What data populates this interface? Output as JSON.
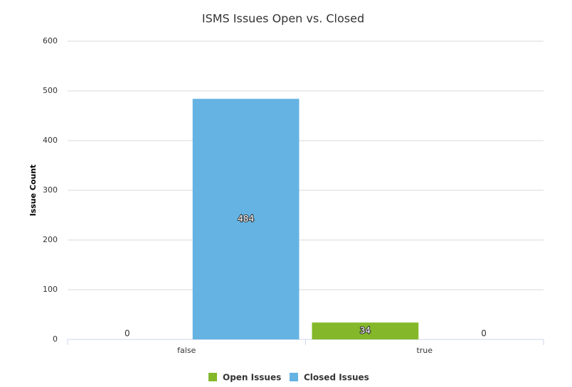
{
  "chart_data": {
    "type": "bar",
    "title": "ISMS Issues Open vs. Closed",
    "ylabel": "Issue Count",
    "categories": [
      "false",
      "true"
    ],
    "series": [
      {
        "name": "Open Issues",
        "color": "#84b82a",
        "values": [
          0,
          34
        ]
      },
      {
        "name": "Closed Issues",
        "color": "#64b3e2",
        "values": [
          484,
          0
        ]
      }
    ],
    "ylim": [
      0,
      600
    ],
    "yticks": [
      0,
      100,
      200,
      300,
      400,
      500,
      600
    ],
    "grid": true,
    "legend": "bottom"
  }
}
